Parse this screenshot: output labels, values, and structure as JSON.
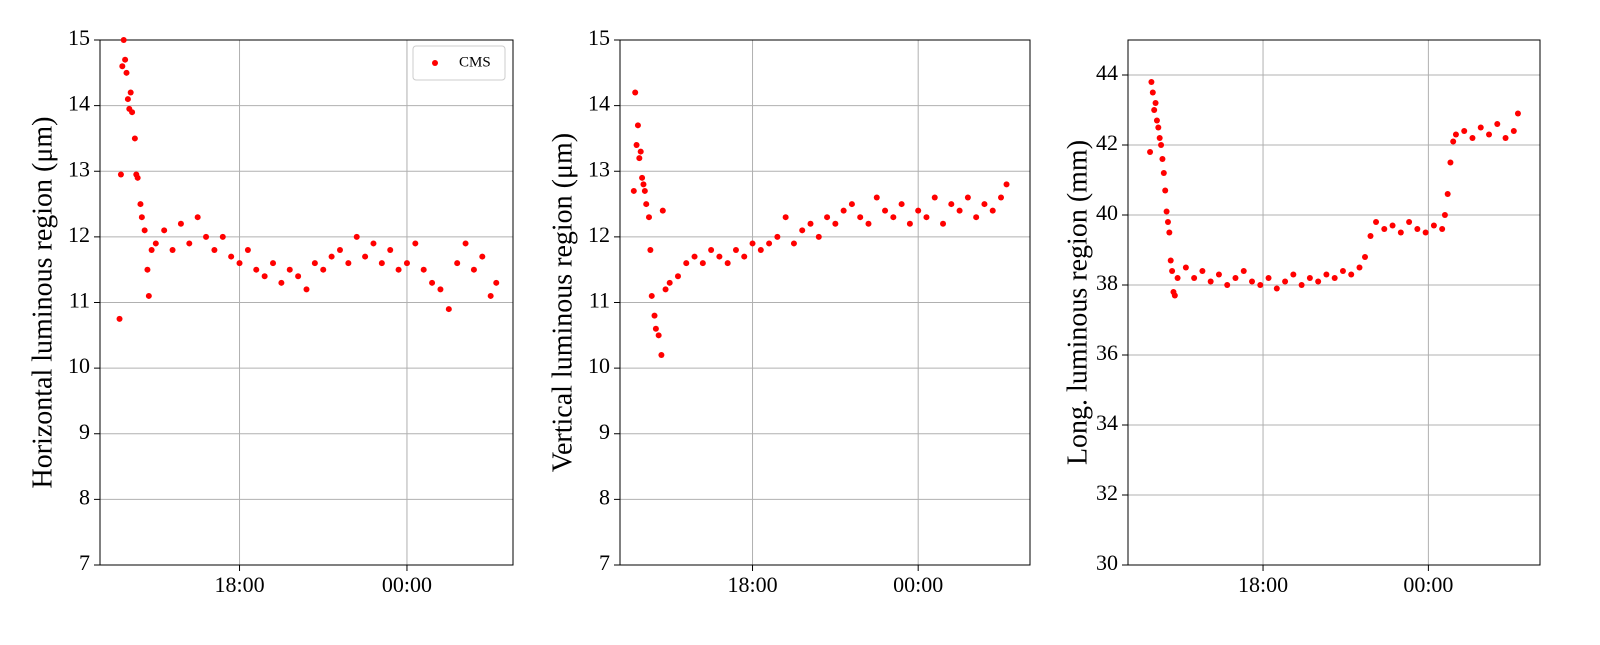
{
  "chart_data": [
    {
      "type": "scatter",
      "ylabel": "Horizontal luminous region (μm)",
      "legend": "upper right",
      "grid": true,
      "xlim": [
        13.0,
        27.8
      ],
      "xticks": [
        {
          "value": 18,
          "label": "18:00"
        },
        {
          "value": 24,
          "label": "00:00"
        }
      ],
      "ylim": [
        7,
        15
      ],
      "yticks": [
        7,
        8,
        9,
        10,
        11,
        12,
        13,
        14,
        15
      ],
      "x": [
        13.7,
        13.75,
        13.8,
        13.85,
        13.9,
        13.95,
        14.0,
        14.05,
        14.1,
        14.15,
        14.25,
        14.3,
        14.35,
        14.45,
        14.5,
        14.6,
        14.7,
        14.75,
        14.85,
        15.0,
        15.3,
        15.6,
        15.9,
        16.2,
        16.5,
        16.8,
        17.1,
        17.4,
        17.7,
        18.0,
        18.3,
        18.6,
        18.9,
        19.2,
        19.5,
        19.8,
        20.1,
        20.4,
        20.7,
        21.0,
        21.3,
        21.6,
        21.9,
        22.2,
        22.5,
        22.8,
        23.1,
        23.4,
        23.7,
        24.0,
        24.3,
        24.6,
        24.9,
        25.2,
        25.5,
        25.8,
        26.1,
        26.4,
        26.7,
        27.0,
        27.2
      ],
      "series": [
        {
          "name": "CMS",
          "color": "#ff0000",
          "values": [
            10.75,
            12.95,
            14.6,
            15.0,
            14.7,
            14.5,
            14.1,
            13.95,
            14.2,
            13.9,
            13.5,
            12.95,
            12.9,
            12.5,
            12.3,
            12.1,
            11.5,
            11.1,
            11.8,
            11.9,
            12.1,
            11.8,
            12.2,
            11.9,
            12.3,
            12.0,
            11.8,
            12.0,
            11.7,
            11.6,
            11.8,
            11.5,
            11.4,
            11.6,
            11.3,
            11.5,
            11.4,
            11.2,
            11.6,
            11.5,
            11.7,
            11.8,
            11.6,
            12.0,
            11.7,
            11.9,
            11.6,
            11.8,
            11.5,
            11.6,
            11.9,
            11.5,
            11.3,
            11.2,
            10.9,
            11.6,
            11.9,
            11.5,
            11.7,
            11.1,
            11.3
          ]
        }
      ]
    },
    {
      "type": "scatter",
      "ylabel": "Vertical luminous region (μm)",
      "grid": true,
      "xlim": [
        13.2,
        28.05
      ],
      "xticks": [
        {
          "value": 18,
          "label": "18:00"
        },
        {
          "value": 24,
          "label": "00:00"
        }
      ],
      "ylim": [
        7,
        15
      ],
      "yticks": [
        7,
        8,
        9,
        10,
        11,
        12,
        13,
        14,
        15
      ],
      "x": [
        13.7,
        13.75,
        13.8,
        13.85,
        13.9,
        13.95,
        14.0,
        14.05,
        14.1,
        14.15,
        14.25,
        14.3,
        14.35,
        14.45,
        14.5,
        14.6,
        14.7,
        14.75,
        14.85,
        15.0,
        15.3,
        15.6,
        15.9,
        16.2,
        16.5,
        16.8,
        17.1,
        17.4,
        17.7,
        18.0,
        18.3,
        18.6,
        18.9,
        19.2,
        19.5,
        19.8,
        20.1,
        20.4,
        20.7,
        21.0,
        21.3,
        21.6,
        21.9,
        22.2,
        22.5,
        22.8,
        23.1,
        23.4,
        23.7,
        24.0,
        24.3,
        24.6,
        24.9,
        25.2,
        25.5,
        25.8,
        26.1,
        26.4,
        26.7,
        27.0,
        27.2
      ],
      "series": [
        {
          "color": "#ff0000",
          "values": [
            12.7,
            14.2,
            13.4,
            13.7,
            13.2,
            13.3,
            12.9,
            12.8,
            12.7,
            12.5,
            12.3,
            11.8,
            11.1,
            10.8,
            10.6,
            10.5,
            10.2,
            12.4,
            11.2,
            11.3,
            11.4,
            11.6,
            11.7,
            11.6,
            11.8,
            11.7,
            11.6,
            11.8,
            11.7,
            11.9,
            11.8,
            11.9,
            12.0,
            12.3,
            11.9,
            12.1,
            12.2,
            12.0,
            12.3,
            12.2,
            12.4,
            12.5,
            12.3,
            12.2,
            12.6,
            12.4,
            12.3,
            12.5,
            12.2,
            12.4,
            12.3,
            12.6,
            12.2,
            12.5,
            12.4,
            12.6,
            12.3,
            12.5,
            12.4,
            12.6,
            12.8
          ]
        }
      ]
    },
    {
      "type": "scatter",
      "ylabel": "Long. luminous region (mm)",
      "grid": true,
      "xlim": [
        13.1,
        28.05
      ],
      "xticks": [
        {
          "value": 18,
          "label": "18:00"
        },
        {
          "value": 24,
          "label": "00:00"
        }
      ],
      "ylim": [
        30,
        45
      ],
      "yticks": [
        30,
        32,
        34,
        36,
        38,
        40,
        42,
        44
      ],
      "x": [
        13.9,
        13.95,
        14.0,
        14.05,
        14.1,
        14.15,
        14.2,
        14.25,
        14.3,
        14.35,
        14.4,
        14.45,
        14.5,
        14.55,
        14.6,
        14.65,
        14.7,
        14.75,
        14.8,
        14.9,
        15.2,
        15.5,
        15.8,
        16.1,
        16.4,
        16.7,
        17.0,
        17.3,
        17.6,
        17.9,
        18.2,
        18.5,
        18.8,
        19.1,
        19.4,
        19.7,
        20.0,
        20.3,
        20.6,
        20.9,
        21.2,
        21.5,
        21.7,
        21.9,
        22.1,
        22.4,
        22.7,
        23.0,
        23.3,
        23.6,
        23.9,
        24.2,
        24.5,
        24.6,
        24.7,
        24.8,
        24.9,
        25.0,
        25.3,
        25.6,
        25.9,
        26.2,
        26.5,
        26.8,
        27.1,
        27.25
      ],
      "series": [
        {
          "color": "#ff0000",
          "values": [
            41.8,
            43.8,
            43.5,
            43.0,
            43.2,
            42.7,
            42.5,
            42.2,
            42.0,
            41.6,
            41.2,
            40.7,
            40.1,
            39.8,
            39.5,
            38.7,
            38.4,
            37.8,
            37.7,
            38.2,
            38.5,
            38.2,
            38.4,
            38.1,
            38.3,
            38.0,
            38.2,
            38.4,
            38.1,
            38.0,
            38.2,
            37.9,
            38.1,
            38.3,
            38.0,
            38.2,
            38.1,
            38.3,
            38.2,
            38.4,
            38.3,
            38.5,
            38.8,
            39.4,
            39.8,
            39.6,
            39.7,
            39.5,
            39.8,
            39.6,
            39.5,
            39.7,
            39.6,
            40.0,
            40.6,
            41.5,
            42.1,
            42.3,
            42.4,
            42.2,
            42.5,
            42.3,
            42.6,
            42.2,
            42.4,
            42.9
          ]
        }
      ]
    }
  ]
}
